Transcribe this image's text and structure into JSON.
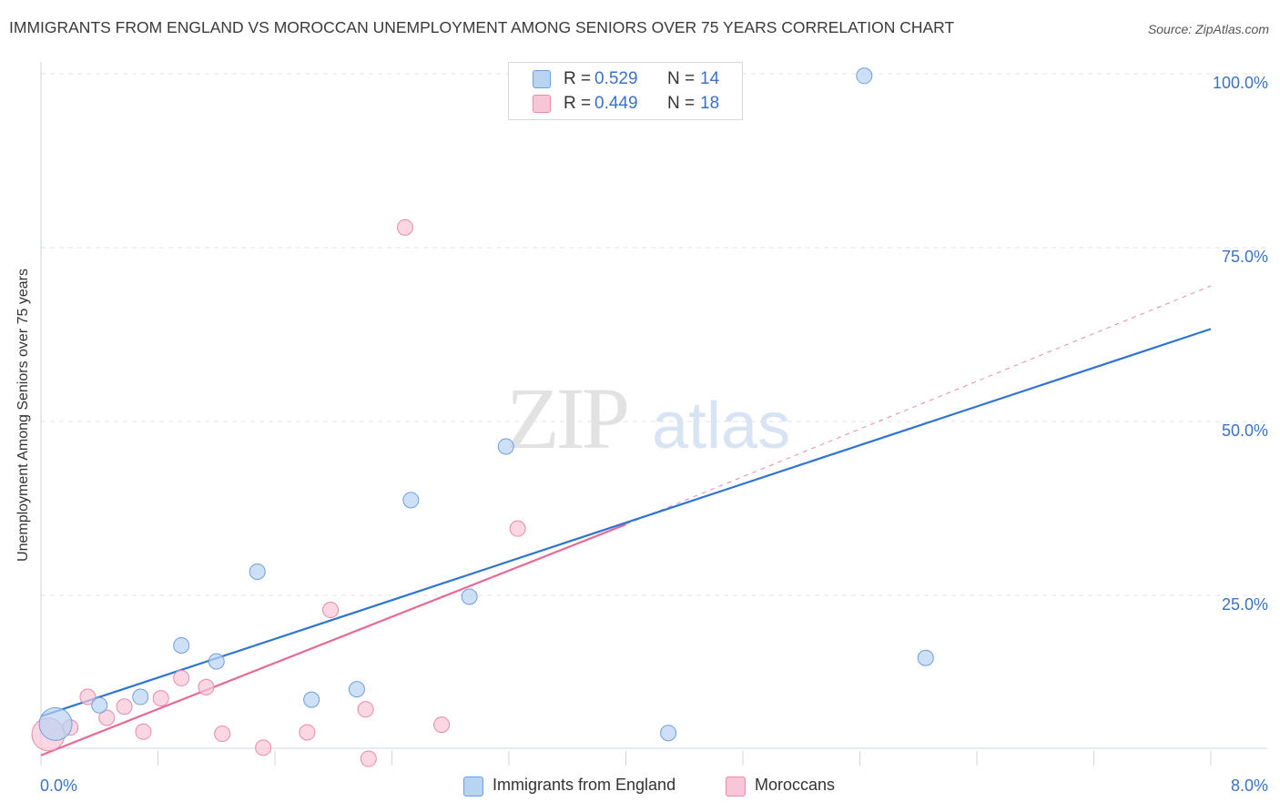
{
  "title": "IMMIGRANTS FROM ENGLAND VS MOROCCAN UNEMPLOYMENT AMONG SENIORS OVER 75 YEARS CORRELATION CHART",
  "source": "Source: ZipAtlas.com",
  "watermark": {
    "zip": "ZIP",
    "atlas": "atlas"
  },
  "legend": {
    "rows": [
      {
        "r_label": "R = ",
        "r_value": "0.529",
        "n_label": "N = ",
        "n_value": "14"
      },
      {
        "r_label": "R = ",
        "r_value": "0.449",
        "n_label": "N = ",
        "n_value": "18"
      }
    ]
  },
  "colors": {
    "england_fill": "#b9d3f3",
    "england_stroke": "#6d9fdb",
    "england_line": "#2f74d0",
    "moroccan_fill": "#f8c6d6",
    "moroccan_stroke": "#e98aa8",
    "moroccan_line": "#e56a96",
    "axis_label": "#3a72c4",
    "grid": "#dde3ea"
  },
  "chart_data": {
    "type": "scatter",
    "title": "IMMIGRANTS FROM ENGLAND VS MOROCCAN UNEMPLOYMENT AMONG SENIORS OVER 75 YEARS CORRELATION CHART",
    "xlabel": "",
    "ylabel": "Unemployment Among Seniors over 75 years",
    "xlim": [
      0,
      8
    ],
    "ylim": [
      0,
      100
    ],
    "x_tick_labels": [
      "0.0%",
      "8.0%"
    ],
    "y_ticks": [
      25,
      50,
      75,
      100
    ],
    "y_tick_labels": [
      "25.0%",
      "50.0%",
      "75.0%",
      "100.0%"
    ],
    "grid": true,
    "series": [
      {
        "name": "Immigrants from England",
        "r": 0.529,
        "n": 14,
        "points": [
          {
            "x": 0.1,
            "y": 6.5,
            "size": "large"
          },
          {
            "x": 0.4,
            "y": 9.2
          },
          {
            "x": 0.68,
            "y": 10.4
          },
          {
            "x": 0.96,
            "y": 17.8
          },
          {
            "x": 1.2,
            "y": 15.5
          },
          {
            "x": 1.48,
            "y": 28.4
          },
          {
            "x": 1.85,
            "y": 10.0
          },
          {
            "x": 2.16,
            "y": 11.5
          },
          {
            "x": 2.53,
            "y": 38.7
          },
          {
            "x": 2.93,
            "y": 24.8
          },
          {
            "x": 3.18,
            "y": 46.4
          },
          {
            "x": 4.29,
            "y": 5.2
          },
          {
            "x": 5.63,
            "y": 99.7
          },
          {
            "x": 6.05,
            "y": 16.0
          }
        ],
        "trendline": {
          "x": [
            0,
            8
          ],
          "y": [
            7.6,
            63.3
          ]
        }
      },
      {
        "name": "Moroccans",
        "r": 0.449,
        "n": 18,
        "points": [
          {
            "x": 0.05,
            "y": 5.0,
            "size": "large"
          },
          {
            "x": 0.2,
            "y": 6.0
          },
          {
            "x": 0.32,
            "y": 10.4
          },
          {
            "x": 0.45,
            "y": 7.4
          },
          {
            "x": 0.57,
            "y": 9.0
          },
          {
            "x": 0.7,
            "y": 5.4
          },
          {
            "x": 0.82,
            "y": 10.2
          },
          {
            "x": 0.96,
            "y": 13.1
          },
          {
            "x": 1.13,
            "y": 11.8
          },
          {
            "x": 1.24,
            "y": 5.1
          },
          {
            "x": 1.52,
            "y": 3.1
          },
          {
            "x": 1.82,
            "y": 5.3
          },
          {
            "x": 1.98,
            "y": 22.9
          },
          {
            "x": 2.22,
            "y": 8.6
          },
          {
            "x": 2.24,
            "y": 1.5
          },
          {
            "x": 2.49,
            "y": 77.9
          },
          {
            "x": 2.74,
            "y": 6.4
          },
          {
            "x": 3.26,
            "y": 34.6
          }
        ],
        "trendline": {
          "x": [
            0,
            4
          ],
          "y": [
            2.0,
            35.2
          ]
        },
        "trendline_extension": {
          "x": [
            4,
            8
          ],
          "y": [
            35.2,
            69.5
          ]
        }
      }
    ]
  }
}
